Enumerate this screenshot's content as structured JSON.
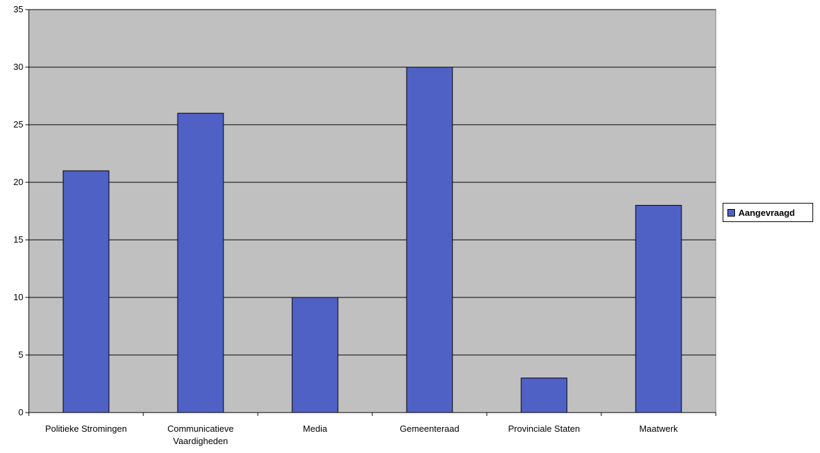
{
  "chart_data": {
    "type": "bar",
    "categories": [
      "Politieke Stromingen",
      "Communicatieve Vaardigheden",
      "Media",
      "Gemeenteraad",
      "Provinciale Staten",
      "Maatwerk"
    ],
    "category_lines": [
      [
        "Politieke Stromingen"
      ],
      [
        "Communicatieve",
        "Vaardigheden"
      ],
      [
        "Media"
      ],
      [
        "Gemeenteraad"
      ],
      [
        "Provinciale Staten"
      ],
      [
        "Maatwerk"
      ]
    ],
    "series": [
      {
        "name": "Aangevraagd",
        "values": [
          21,
          26,
          10,
          30,
          3,
          18
        ]
      }
    ],
    "title": "",
    "xlabel": "",
    "ylabel": "",
    "ylim": [
      0,
      35
    ],
    "yticks": [
      0,
      5,
      10,
      15,
      20,
      25,
      30,
      35
    ],
    "grid": true,
    "legend_position": "right",
    "colors": {
      "bar": "#4f61c5",
      "bar_border": "#000000",
      "plot_background": "#c0c0c0",
      "gridline": "#000000"
    }
  },
  "legend": {
    "label": "Aangevraagd"
  }
}
